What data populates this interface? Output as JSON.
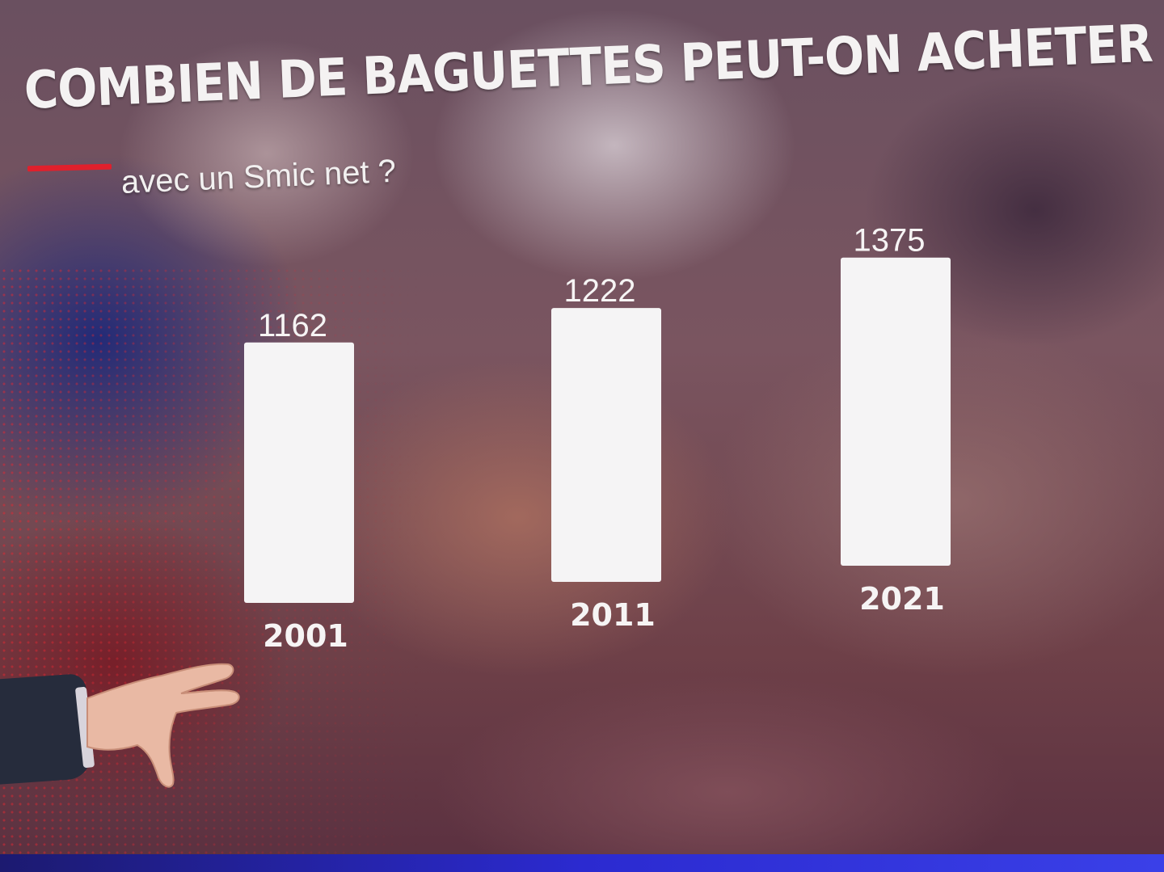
{
  "title": "COMBIEN DE BAGUETTES PEUT-ON ACHETER",
  "subtitle": "avec un Smic net ?",
  "colors": {
    "bar": "#f5f4f5",
    "accent": "#e0202c",
    "text": "#f6f4f4"
  },
  "chart_data": {
    "type": "bar",
    "title": "COMBIEN DE BAGUETTES PEUT-ON ACHETER",
    "subtitle": "avec un Smic net ?",
    "categories": [
      "2001",
      "2011",
      "2021"
    ],
    "values": [
      1162,
      1222,
      1375
    ],
    "value_labels": [
      "1162",
      "1222",
      "1375"
    ],
    "xlabel": "",
    "ylabel": "",
    "grid": false,
    "legend": "none"
  }
}
